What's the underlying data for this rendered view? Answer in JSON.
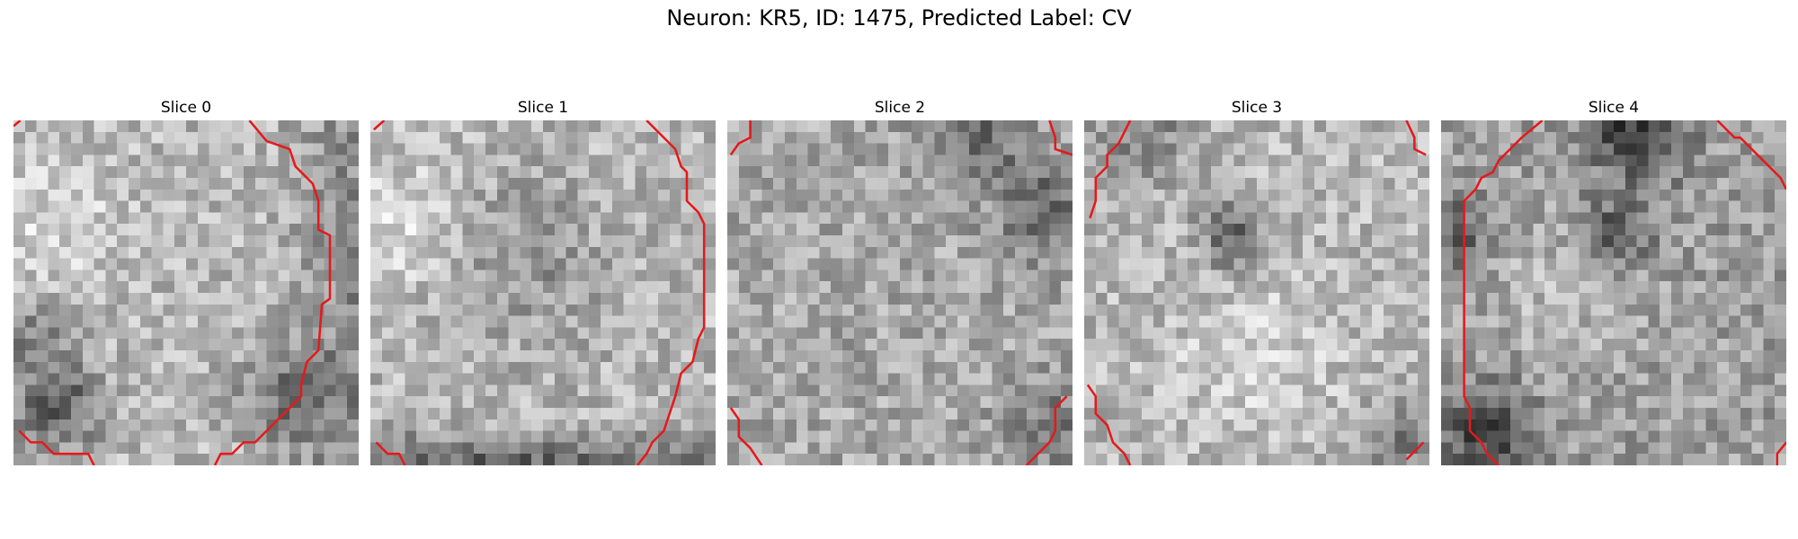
{
  "figure": {
    "suptitle": "Neuron: KR5, ID: 1475, Predicted Label: CV"
  },
  "panels": [
    {
      "title": "Slice 0"
    },
    {
      "title": "Slice 1"
    },
    {
      "title": "Slice 2"
    },
    {
      "title": "Slice 3"
    },
    {
      "title": "Slice 4"
    }
  ],
  "colors": {
    "contour": "#e41a1c",
    "background": "#ffffff"
  }
}
